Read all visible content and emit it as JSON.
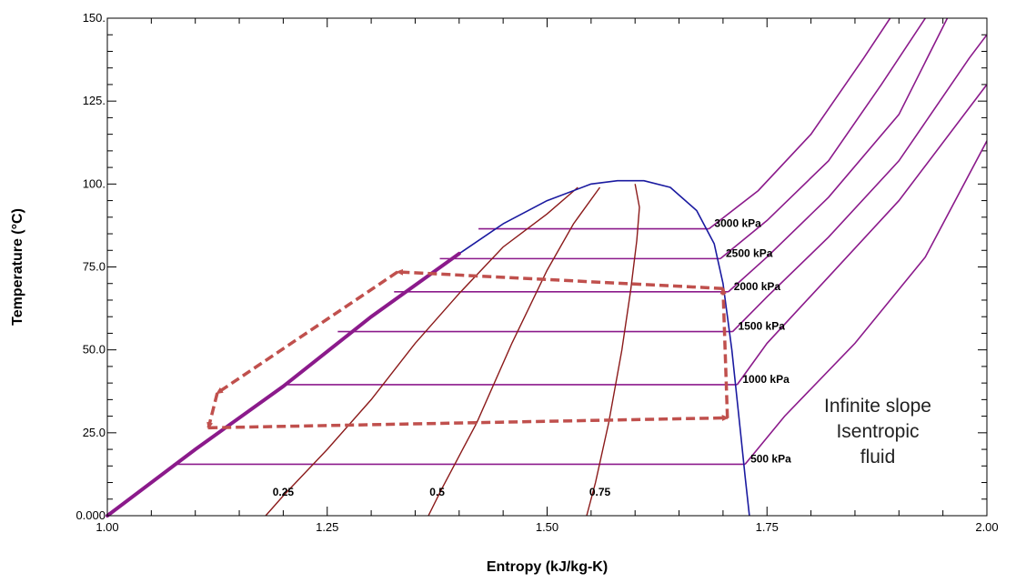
{
  "chart_data": {
    "type": "line",
    "xlabel": "Entropy (kJ/kg-K)",
    "ylabel": "Temperature (°C)",
    "xlim": [
      1.0,
      2.0
    ],
    "ylim": [
      0,
      150
    ],
    "x_ticks": [
      {
        "value": 1.0,
        "label": "1.00"
      },
      {
        "value": 1.25,
        "label": "1.25"
      },
      {
        "value": 1.5,
        "label": "1.50"
      },
      {
        "value": 1.75,
        "label": "1.75"
      },
      {
        "value": 2.0,
        "label": "2.00"
      }
    ],
    "y_ticks": [
      {
        "value": 0,
        "label": "0.000"
      },
      {
        "value": 25,
        "label": "25.0"
      },
      {
        "value": 50,
        "label": "50.0"
      },
      {
        "value": 75,
        "label": "75.0"
      },
      {
        "value": 100,
        "label": "100."
      },
      {
        "value": 125,
        "label": "125."
      },
      {
        "value": 150,
        "label": "150."
      }
    ],
    "colors": {
      "saturation_dome": "#1a1aa0",
      "isobar": "#8b1a8b",
      "quality_line": "#8b1a1a",
      "cycle": "#c0504d"
    },
    "saturation_dome": [
      [
        1.0,
        0
      ],
      [
        1.1,
        20
      ],
      [
        1.2,
        39
      ],
      [
        1.3,
        60
      ],
      [
        1.4,
        79
      ],
      [
        1.45,
        88
      ],
      [
        1.5,
        95
      ],
      [
        1.55,
        100
      ],
      [
        1.58,
        101
      ],
      [
        1.61,
        101
      ],
      [
        1.64,
        99
      ],
      [
        1.67,
        92
      ],
      [
        1.69,
        82
      ],
      [
        1.7,
        70
      ],
      [
        1.71,
        50
      ],
      [
        1.72,
        25
      ],
      [
        1.725,
        12
      ],
      [
        1.73,
        0
      ]
    ],
    "isobars": [
      {
        "label": "500 kPa",
        "T": 15.5,
        "s_liquid": 1.075,
        "s_vapor": 1.725,
        "superheat": [
          [
            1.725,
            15.5
          ],
          [
            1.77,
            30
          ],
          [
            1.85,
            52
          ],
          [
            1.93,
            78
          ],
          [
            2.0,
            113
          ]
        ]
      },
      {
        "label": "1000 kPa",
        "T": 39.5,
        "s_liquid": 1.205,
        "s_vapor": 1.716,
        "superheat": [
          [
            1.716,
            39.5
          ],
          [
            1.75,
            52
          ],
          [
            1.82,
            72
          ],
          [
            1.9,
            95
          ],
          [
            2.0,
            130
          ]
        ]
      },
      {
        "label": "1500 kPa",
        "T": 55.5,
        "s_liquid": 1.262,
        "s_vapor": 1.711,
        "superheat": [
          [
            1.711,
            55.5
          ],
          [
            1.75,
            66
          ],
          [
            1.82,
            84
          ],
          [
            1.9,
            107
          ],
          [
            1.98,
            138
          ],
          [
            2.0,
            145
          ]
        ]
      },
      {
        "label": "2000 kPa",
        "T": 67.5,
        "s_liquid": 1.326,
        "s_vapor": 1.706,
        "superheat": [
          [
            1.706,
            67.5
          ],
          [
            1.75,
            78
          ],
          [
            1.82,
            96
          ],
          [
            1.9,
            121
          ],
          [
            1.955,
            150
          ]
        ]
      },
      {
        "label": "2500 kPa",
        "T": 77.5,
        "s_liquid": 1.378,
        "s_vapor": 1.697,
        "superheat": [
          [
            1.697,
            77.5
          ],
          [
            1.75,
            89
          ],
          [
            1.82,
            107
          ],
          [
            1.88,
            130
          ],
          [
            1.93,
            150
          ]
        ]
      },
      {
        "label": "3000 kPa",
        "T": 86.5,
        "s_liquid": 1.422,
        "s_vapor": 1.684,
        "superheat": [
          [
            1.684,
            86.5
          ],
          [
            1.74,
            98
          ],
          [
            1.8,
            115
          ],
          [
            1.86,
            138
          ],
          [
            1.89,
            150
          ]
        ]
      }
    ],
    "quality_lines": [
      {
        "label": "0.25",
        "points": [
          [
            1.18,
            0
          ],
          [
            1.2,
            6
          ],
          [
            1.25,
            20
          ],
          [
            1.3,
            35
          ],
          [
            1.35,
            52
          ],
          [
            1.4,
            67
          ],
          [
            1.45,
            81
          ],
          [
            1.5,
            91
          ],
          [
            1.535,
            99
          ]
        ]
      },
      {
        "label": "0.5",
        "points": [
          [
            1.365,
            0
          ],
          [
            1.38,
            8
          ],
          [
            1.42,
            28
          ],
          [
            1.46,
            52
          ],
          [
            1.5,
            74
          ],
          [
            1.53,
            88
          ],
          [
            1.56,
            99
          ]
        ]
      },
      {
        "label": "0.75",
        "points": [
          [
            1.545,
            0
          ],
          [
            1.555,
            10
          ],
          [
            1.57,
            28
          ],
          [
            1.585,
            50
          ],
          [
            1.595,
            68
          ],
          [
            1.602,
            83
          ],
          [
            1.605,
            93
          ],
          [
            1.6,
            100
          ]
        ]
      }
    ],
    "quality_label_positions": [
      [
        1.2,
        6
      ],
      [
        1.375,
        6
      ],
      [
        1.56,
        6
      ]
    ],
    "cycle_path": [
      [
        1.115,
        26.5
      ],
      [
        1.705,
        29.5
      ],
      [
        1.7,
        68.5
      ],
      [
        1.33,
        73.5
      ],
      [
        1.125,
        37
      ],
      [
        1.115,
        26.5
      ]
    ],
    "annotation": {
      "lines": [
        "Infinite slope",
        "Isentropic",
        "fluid"
      ]
    }
  }
}
